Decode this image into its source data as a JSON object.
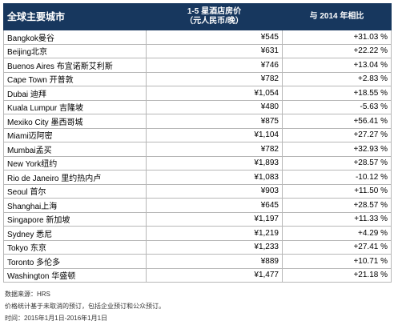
{
  "table": {
    "header": [
      "全球主要城市",
      [
        "1-5 星酒店房价",
        "（元人民币/晚）"
      ],
      "与 2014 年相比"
    ],
    "rows": [
      [
        "Bangkok曼谷",
        "¥545",
        "+31.03 %"
      ],
      [
        "Beijing北京",
        "¥631",
        "+22.22 %"
      ],
      [
        "Buenos Aires 布宜诺斯艾利斯",
        "¥746",
        "+13.04 %"
      ],
      [
        "Cape Town 开普敦",
        "¥782",
        "+2.83 %"
      ],
      [
        "Dubai 迪拜",
        "¥1,054",
        "+18.55 %"
      ],
      [
        "Kuala Lumpur 吉隆坡",
        "¥480",
        "-5.63 %"
      ],
      [
        "Mexiko City 墨西哥城",
        "¥875",
        "+56.41 %"
      ],
      [
        "Miami迈阿密",
        "¥1,104",
        "+27.27 %"
      ],
      [
        "Mumbai孟买",
        "¥782",
        "+32.93 %"
      ],
      [
        "New York纽约",
        "¥1,893",
        "+28.57 %"
      ],
      [
        "Rio de Janeiro 里约热内卢",
        "¥1,083",
        "-10.12 %"
      ],
      [
        "Seoul 首尔",
        "¥903",
        "+11.50 %"
      ],
      [
        "Shanghai上海",
        "¥645",
        "+28.57 %"
      ],
      [
        "Singapore 新加坡",
        "¥1,197",
        "+11.33 %"
      ],
      [
        "Sydney 悉尼",
        "¥1,219",
        "+4.29 %"
      ],
      [
        "Tokyo 东京",
        "¥1,233",
        "+27.41 %"
      ],
      [
        "Toronto 多伦多",
        "¥889",
        "+10.71 %"
      ],
      [
        "Washington 华盛顿",
        "¥1,477",
        "+21.18 %"
      ]
    ]
  },
  "notes": [
    "数据来源：HRS",
    "价格统计基于未取消的预订，包括企业预订和公众预订。",
    "时间：2015年1月1日-2016年1月1日"
  ]
}
